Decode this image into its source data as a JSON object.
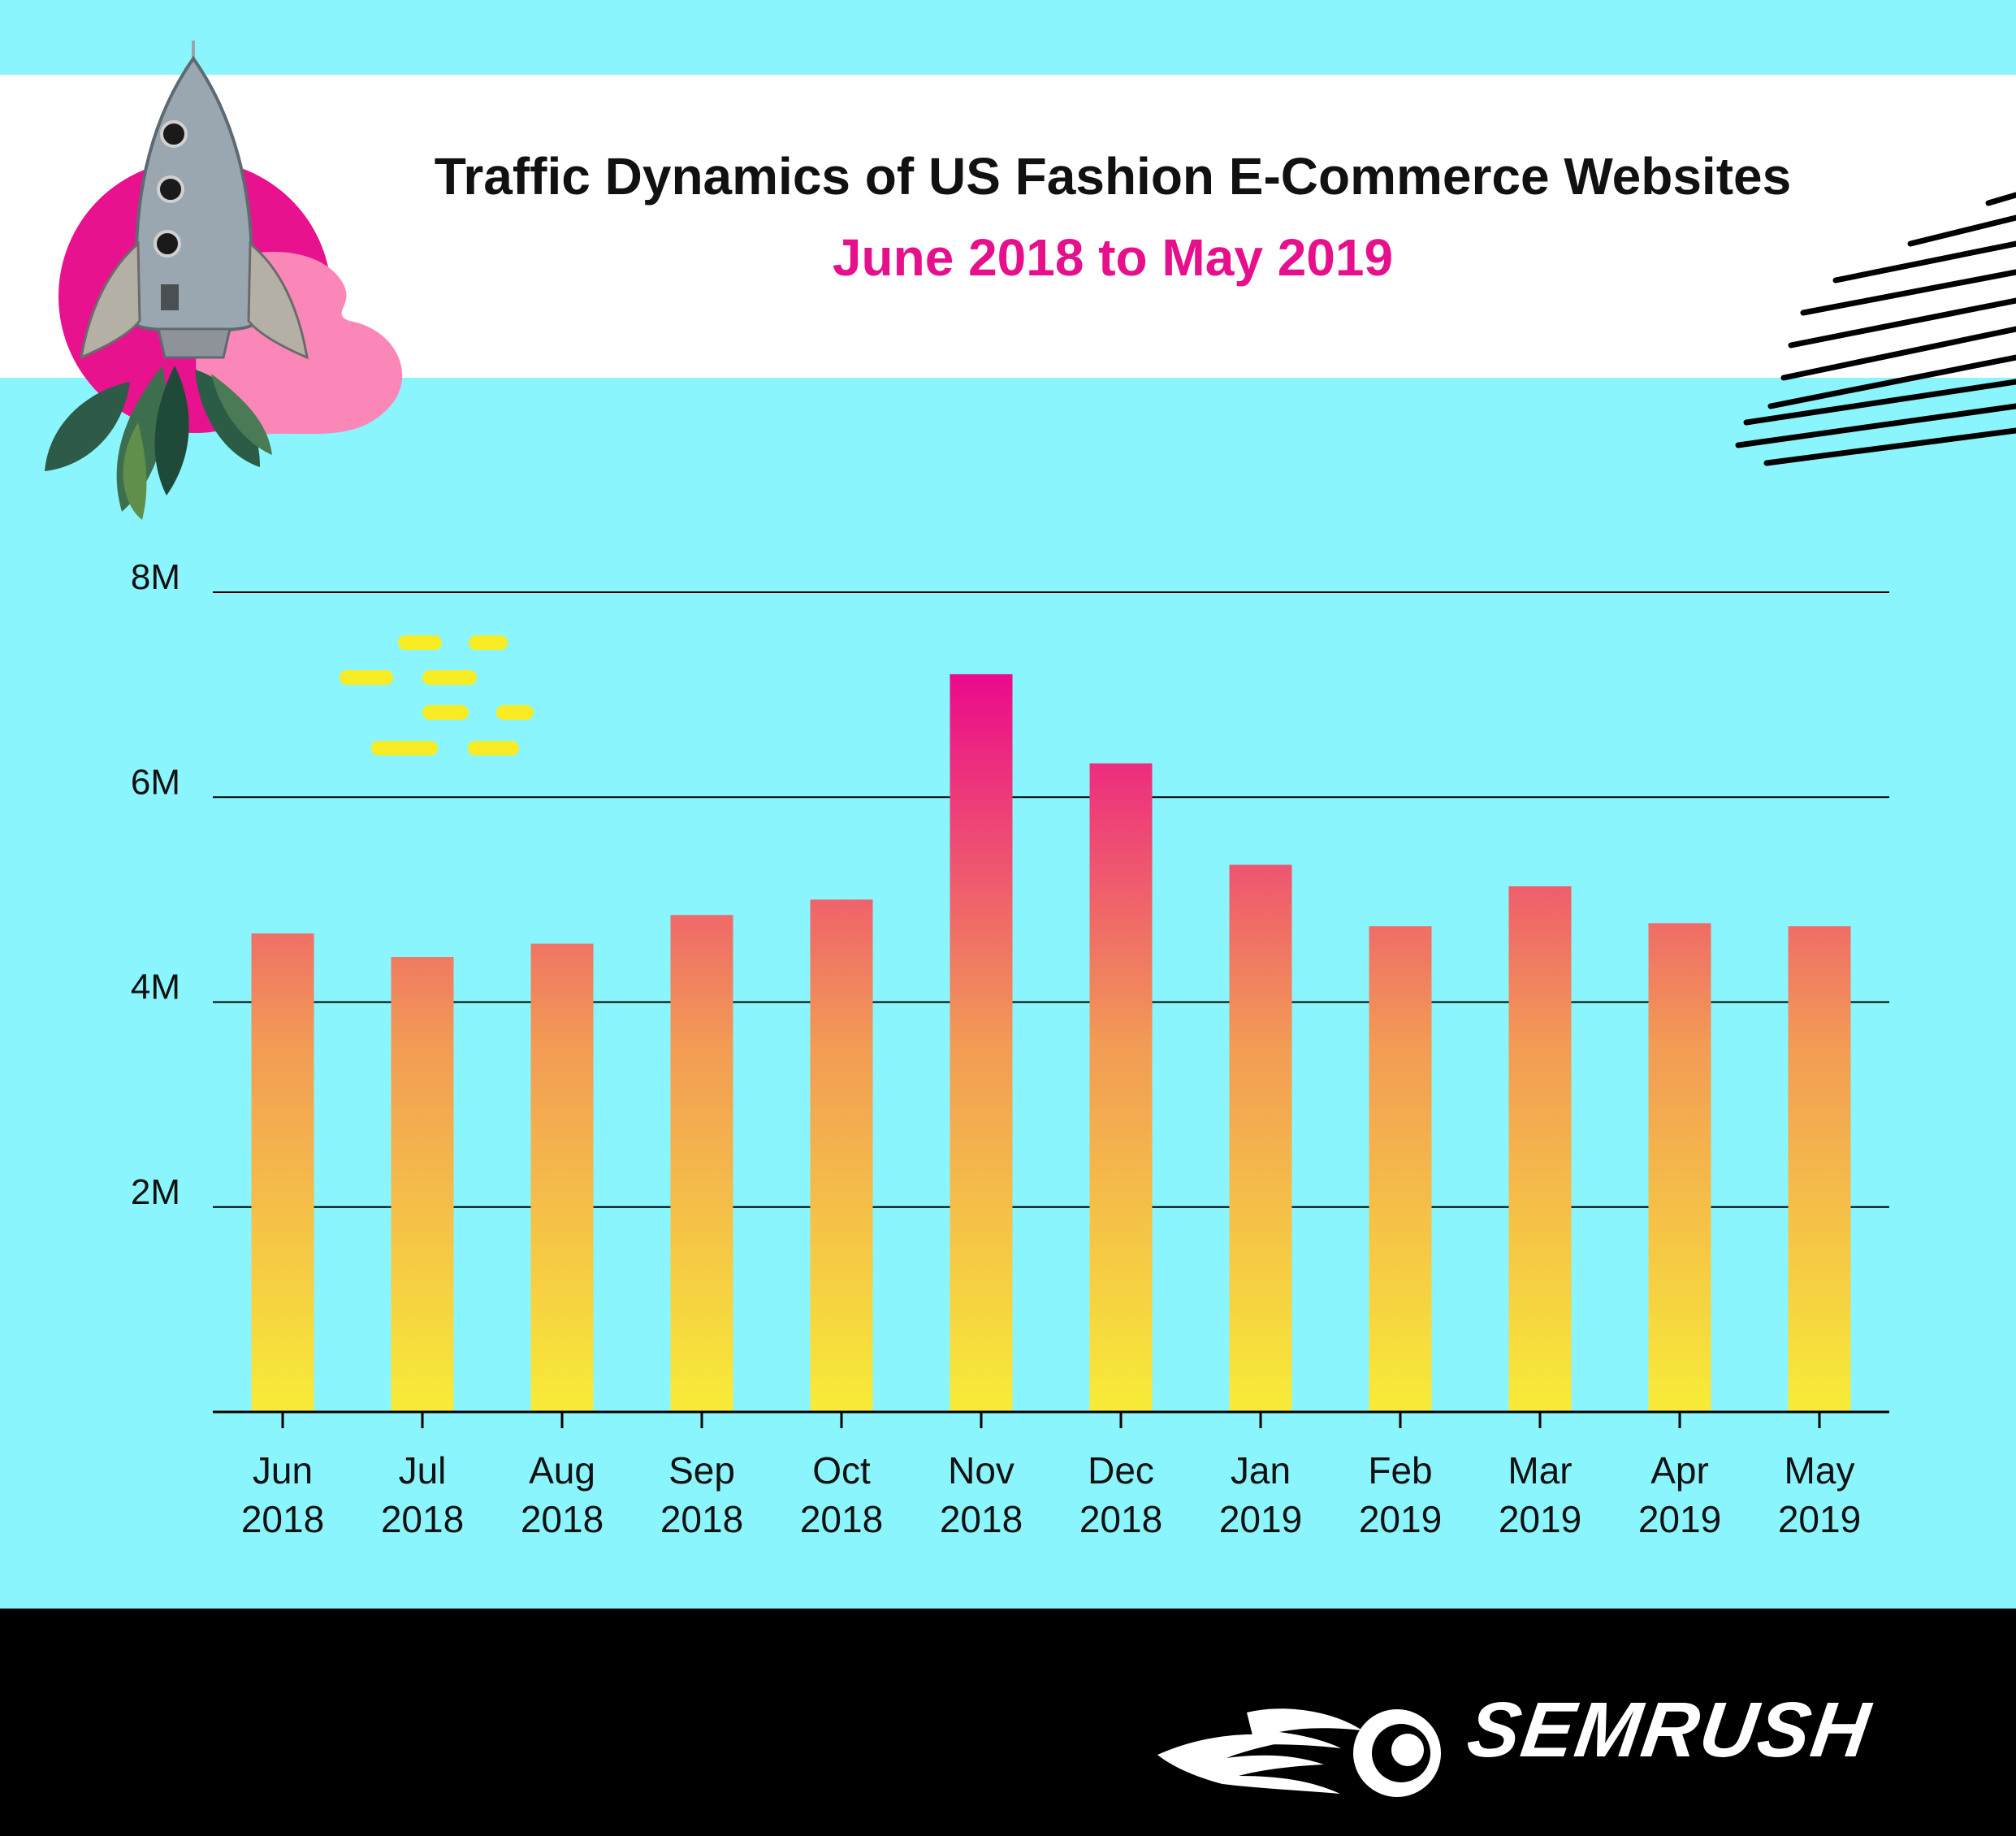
{
  "header": {
    "title": "Traffic Dynamics of US Fashion E-Commerce Websites",
    "subtitle": "June 2018 to May 2019"
  },
  "footer": {
    "brand": "SEMRUSH",
    "brand_icon": "flaming-ball-logo-icon"
  },
  "colors": {
    "background": "#8af5fd",
    "header_band": "#ffffff",
    "subtitle": "#e60f8c",
    "bar_top": "#eb0a8c",
    "bar_mid": "#f29b55",
    "bar_bottom": "#f8ec38",
    "footer": "#000000",
    "decoration_dashes": "#f8ec24",
    "decoration_circle": "#e8118e",
    "decoration_blob": "#fb87b8"
  },
  "chart_data": {
    "type": "bar",
    "title": "Traffic Dynamics of US Fashion E-Commerce Websites",
    "subtitle": "June 2018 to May 2019",
    "categories": [
      [
        "Jun",
        "2018"
      ],
      [
        "Jul",
        "2018"
      ],
      [
        "Aug",
        "2018"
      ],
      [
        "Sep",
        "2018"
      ],
      [
        "Oct",
        "2018"
      ],
      [
        "Nov",
        "2018"
      ],
      [
        "Dec",
        "2018"
      ],
      [
        "Jan",
        "2019"
      ],
      [
        "Feb",
        "2019"
      ],
      [
        "Mar",
        "2019"
      ],
      [
        "Apr",
        "2019"
      ],
      [
        "May",
        "2019"
      ]
    ],
    "values": [
      4670000,
      4440000,
      4570000,
      4850000,
      5000000,
      7200000,
      6330000,
      5340000,
      4740000,
      5130000,
      4770000,
      4740000
    ],
    "yticks": [
      {
        "value": 8000000,
        "label": "8M"
      },
      {
        "value": 6000000,
        "label": "6M"
      },
      {
        "value": 4000000,
        "label": "4M"
      },
      {
        "value": 2000000,
        "label": "2M"
      }
    ],
    "ylim": [
      0,
      8000000
    ],
    "grid": true,
    "xlabel": "",
    "ylabel": ""
  }
}
